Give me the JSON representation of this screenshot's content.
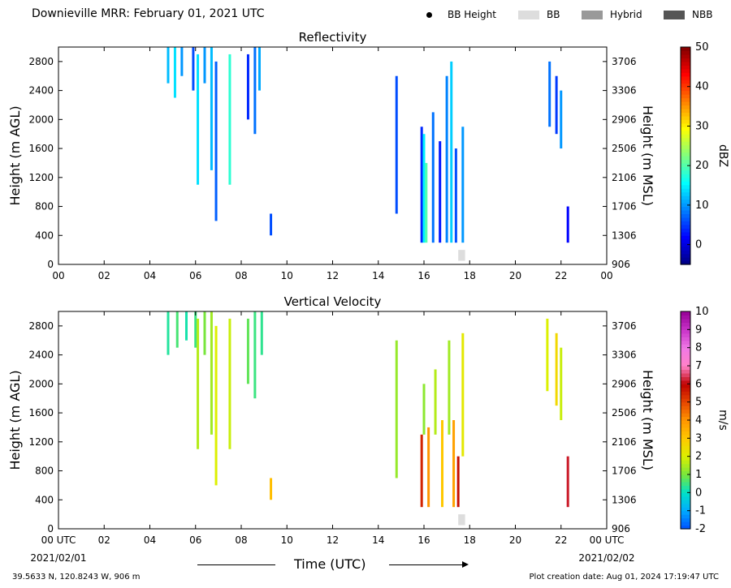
{
  "header": {
    "title": "Downieville MRR:  February 01, 2021 UTC",
    "legend": [
      {
        "label": "BB Height",
        "color": "#000000",
        "marker": "dot"
      },
      {
        "label": "BB",
        "color": "#dddddd",
        "marker": "box"
      },
      {
        "label": "Hybrid",
        "color": "#999999",
        "marker": "box"
      },
      {
        "label": "NBB",
        "color": "#555555",
        "marker": "box"
      }
    ]
  },
  "footer": {
    "location": "39.5633 N, 120.8243 W, 906 m",
    "created": "Plot creation date: Aug 01, 2024 17:19:47 UTC"
  },
  "axis_common": {
    "xlabel": "Time (UTC)",
    "x_ticks": [
      "00",
      "02",
      "04",
      "06",
      "08",
      "10",
      "12",
      "14",
      "16",
      "18",
      "20",
      "22",
      "00"
    ],
    "x_ticks_bottom": [
      "00 UTC",
      "02",
      "04",
      "06",
      "08",
      "10",
      "12",
      "14",
      "16",
      "18",
      "20",
      "22",
      "00 UTC"
    ],
    "date_left": "2021/02/01",
    "date_right": "2021/02/02",
    "y_left_ticks": [
      "0",
      "400",
      "800",
      "1200",
      "1600",
      "2000",
      "2400",
      "2800"
    ],
    "y_right_ticks": [
      "906",
      "1306",
      "1706",
      "2106",
      "2506",
      "2906",
      "3306",
      "3706"
    ],
    "ylabel_left": "Height (m AGL)",
    "ylabel_right": "Height (m MSL)"
  },
  "chart_data": [
    {
      "type": "heatmap",
      "title": "Reflectivity",
      "xlabel": "",
      "ylabel": "Height (m AGL)",
      "xlim": [
        0,
        24
      ],
      "ylim": [
        0,
        3000
      ],
      "colorbar": {
        "label": "dBZ",
        "range": [
          -5,
          50
        ],
        "ticks": [
          "0",
          "10",
          "20",
          "30",
          "40",
          "50"
        ],
        "tick_values": [
          0,
          10,
          20,
          30,
          40,
          50
        ],
        "colormap": "jet"
      },
      "bright_band": [
        {
          "t0": 17.5,
          "t1": 17.8,
          "h0": 50,
          "h1": 200
        }
      ],
      "segments": [
        [
          4.8,
          2500,
          3000,
          12
        ],
        [
          5.1,
          2300,
          3000,
          14
        ],
        [
          5.4,
          2600,
          3000,
          10
        ],
        [
          5.9,
          2400,
          3000,
          6
        ],
        [
          6.1,
          1100,
          2900,
          14
        ],
        [
          6.4,
          2500,
          3000,
          10
        ],
        [
          6.7,
          1300,
          3000,
          12
        ],
        [
          6.9,
          600,
          2800,
          7
        ],
        [
          7.5,
          1100,
          2900,
          18
        ],
        [
          8.3,
          2000,
          2900,
          4
        ],
        [
          8.6,
          1800,
          3000,
          8
        ],
        [
          8.8,
          2400,
          3000,
          11
        ],
        [
          9.3,
          400,
          700,
          6
        ],
        [
          14.8,
          700,
          2600,
          6
        ],
        [
          15.9,
          300,
          1900,
          4
        ],
        [
          16.0,
          300,
          1800,
          15
        ],
        [
          16.1,
          300,
          1400,
          20
        ],
        [
          16.4,
          300,
          2100,
          8
        ],
        [
          16.7,
          300,
          1700,
          3
        ],
        [
          17.0,
          300,
          2600,
          9
        ],
        [
          17.2,
          300,
          2800,
          13
        ],
        [
          17.4,
          300,
          1600,
          6
        ],
        [
          17.7,
          300,
          1900,
          10
        ],
        [
          21.5,
          1900,
          2800,
          8
        ],
        [
          21.8,
          1800,
          2600,
          5
        ],
        [
          22.0,
          1600,
          2400,
          10
        ],
        [
          22.3,
          300,
          800,
          2
        ]
      ]
    },
    {
      "type": "heatmap",
      "title": "Vertical Velocity",
      "xlabel": "Time (UTC)",
      "ylabel": "Height (m AGL)",
      "xlim": [
        0,
        24
      ],
      "ylim": [
        0,
        3000
      ],
      "colorbar": {
        "label": "m/s",
        "range": [
          -2,
          10
        ],
        "ticks": [
          "-2",
          "-1",
          "0",
          "1",
          "2",
          "3",
          "4",
          "5",
          "6",
          "7",
          "8",
          "9",
          "10"
        ],
        "tick_values": [
          -2,
          -1,
          0,
          1,
          2,
          3,
          4,
          5,
          6,
          7,
          8,
          9,
          10
        ],
        "colormap": "velocity"
      },
      "bright_band": [
        {
          "t0": 17.5,
          "t1": 17.8,
          "h0": 50,
          "h1": 200
        }
      ],
      "segments": [
        [
          4.8,
          2400,
          3000,
          0.3
        ],
        [
          5.2,
          2500,
          3000,
          0.6
        ],
        [
          5.6,
          2600,
          3000,
          0.2
        ],
        [
          6.0,
          2500,
          3000,
          0.5
        ],
        [
          6.1,
          1100,
          2900,
          1.6
        ],
        [
          6.4,
          2400,
          3000,
          1.0
        ],
        [
          6.7,
          1300,
          3000,
          1.4
        ],
        [
          6.9,
          600,
          2800,
          2.0
        ],
        [
          7.5,
          1100,
          2900,
          1.8
        ],
        [
          8.3,
          2000,
          2900,
          0.8
        ],
        [
          8.6,
          1800,
          3000,
          0.5
        ],
        [
          8.9,
          2400,
          3000,
          0.4
        ],
        [
          9.3,
          400,
          700,
          3.2
        ],
        [
          14.8,
          700,
          2600,
          1.3
        ],
        [
          15.9,
          300,
          1300,
          5.5
        ],
        [
          16.0,
          1300,
          2000,
          1.2
        ],
        [
          16.2,
          300,
          1400,
          4.0
        ],
        [
          16.5,
          1300,
          2200,
          1.6
        ],
        [
          16.8,
          300,
          1500,
          3.0
        ],
        [
          17.1,
          1300,
          2600,
          1.4
        ],
        [
          17.3,
          300,
          1500,
          3.8
        ],
        [
          17.5,
          300,
          1000,
          5.8
        ],
        [
          17.7,
          1000,
          2700,
          2.2
        ],
        [
          21.4,
          1900,
          2900,
          2.0
        ],
        [
          21.8,
          1700,
          2700,
          2.6
        ],
        [
          22.0,
          1500,
          2500,
          1.8
        ],
        [
          22.3,
          300,
          1000,
          6.2
        ]
      ]
    }
  ]
}
